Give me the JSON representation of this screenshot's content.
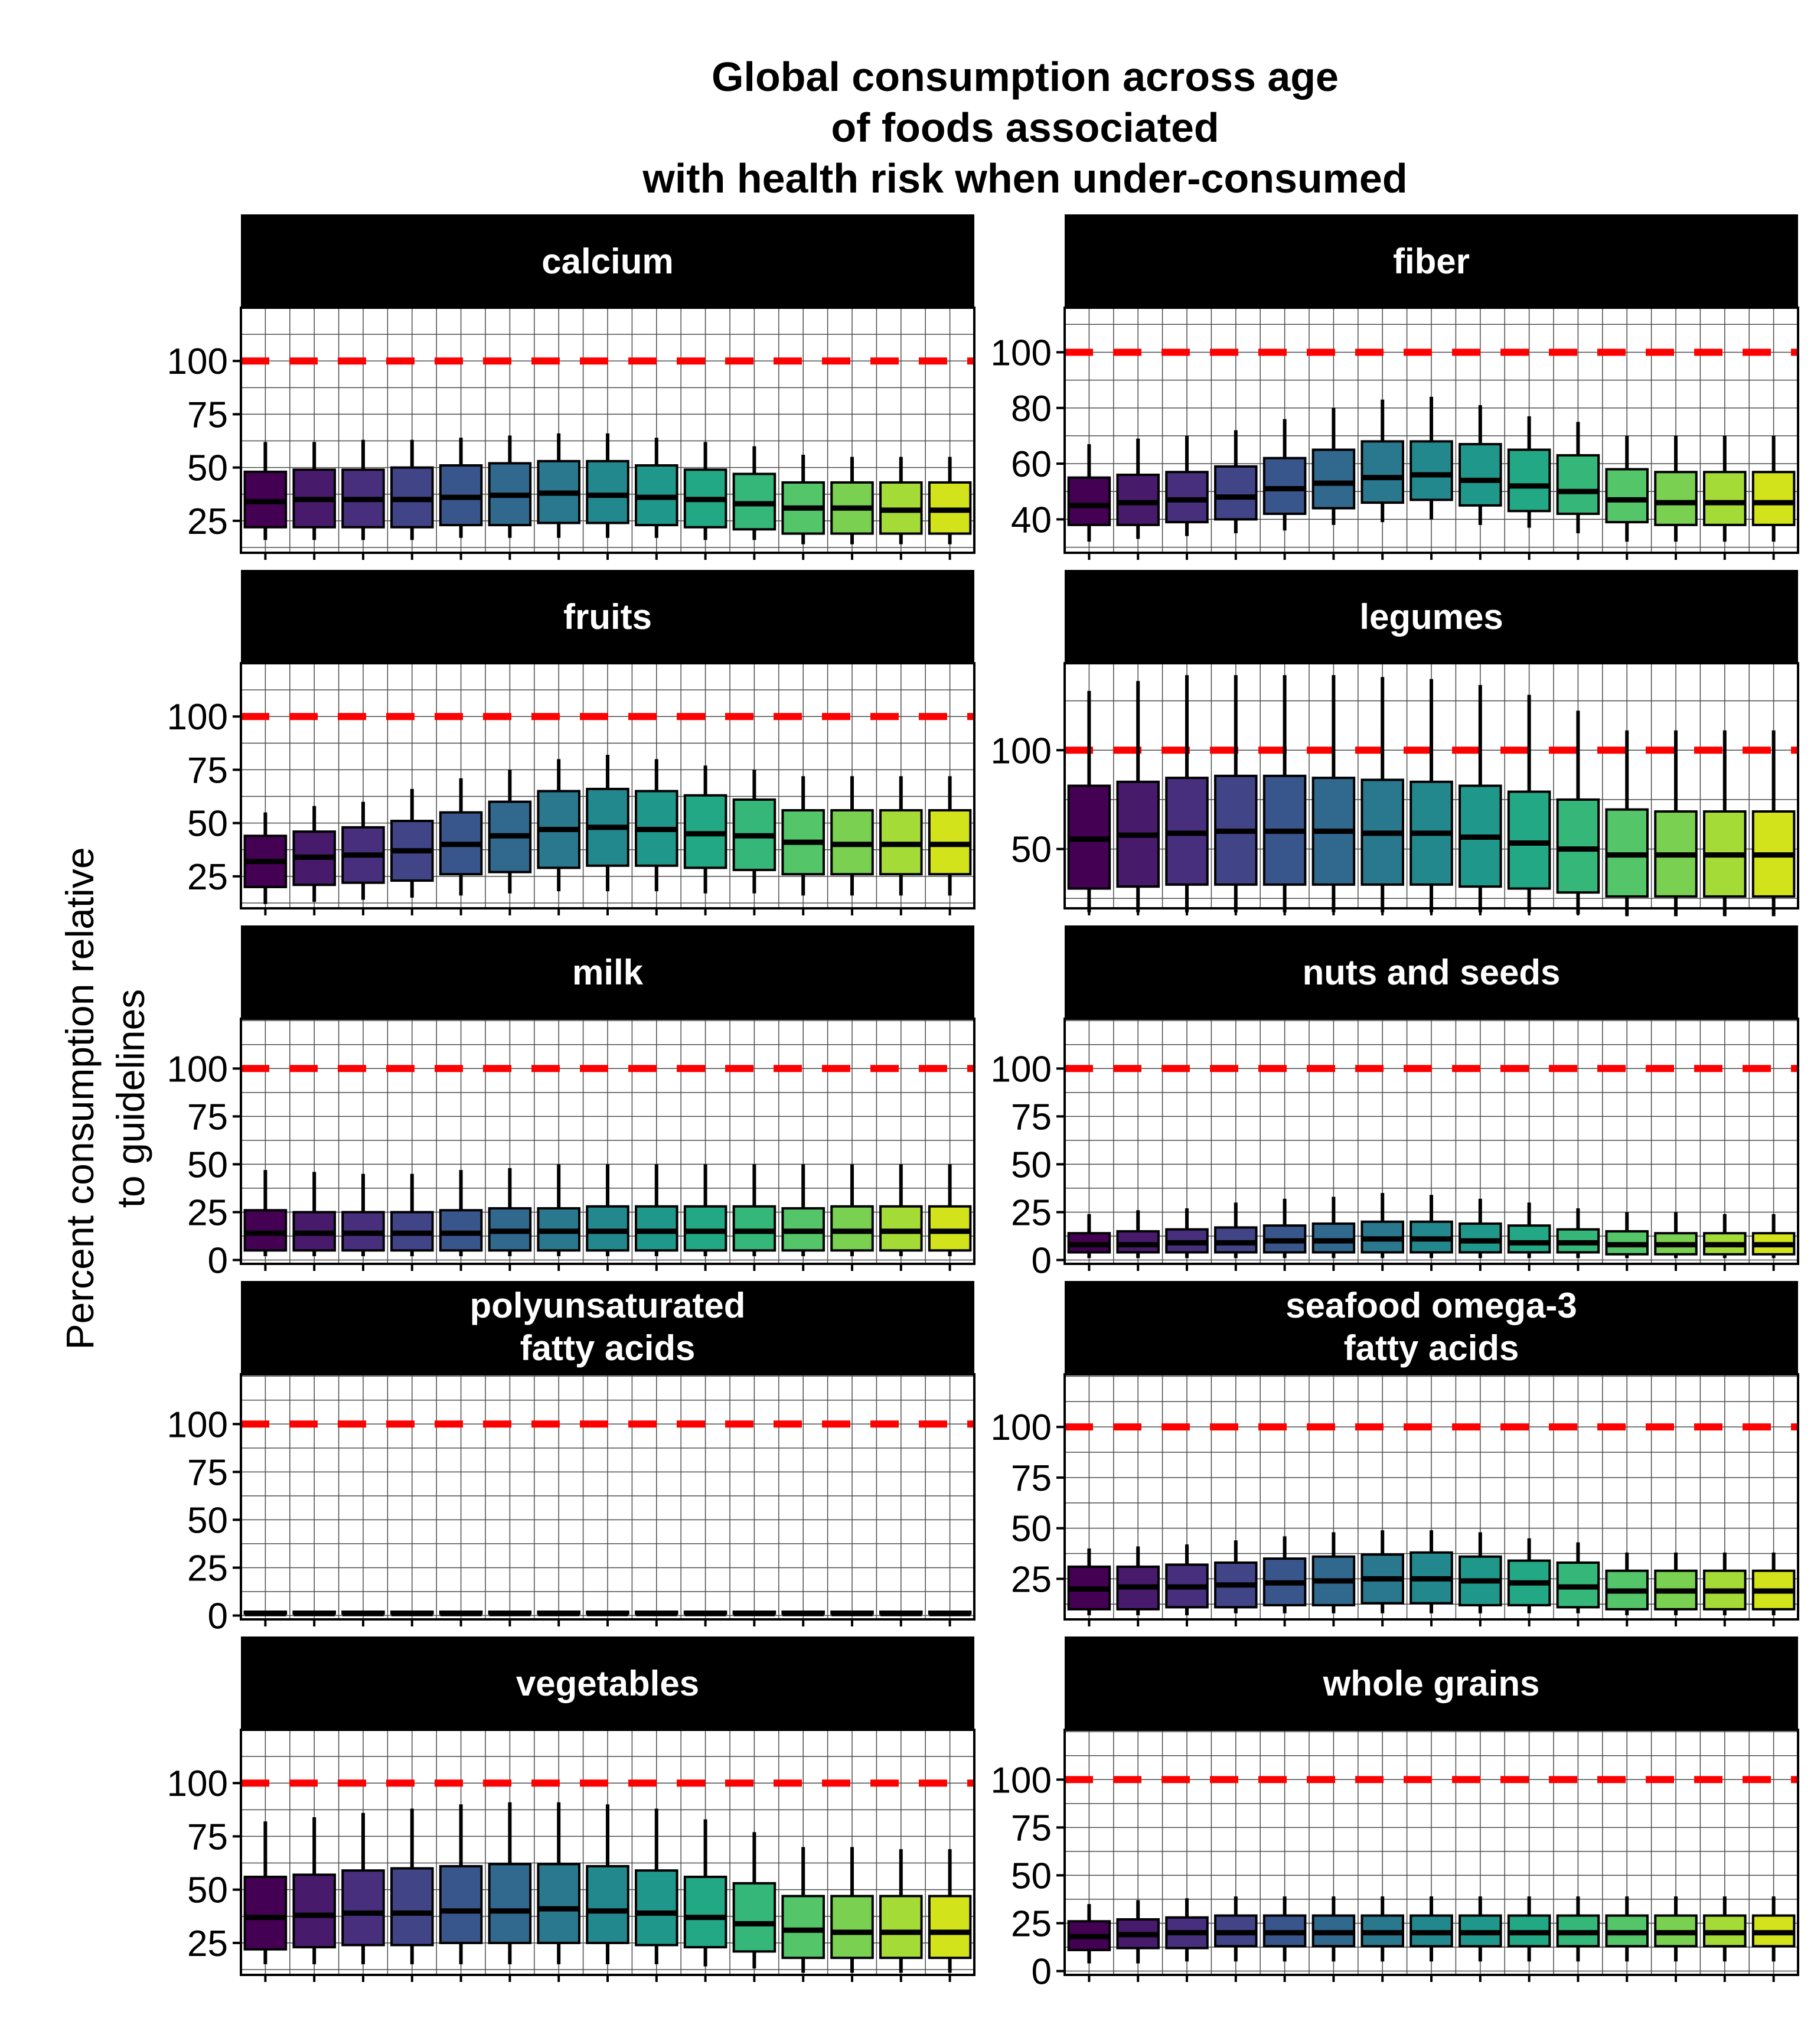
{
  "title": [
    "Global consumption across age",
    "of foods associated",
    "with health risk when under-consumed"
  ],
  "ylabel": [
    "Percent consumption relative",
    "to guidelines"
  ],
  "colors": {
    "reference_line": "#ff0000",
    "strip_background": "#000000",
    "strip_text": "#ffffff",
    "box_stroke": "#000000",
    "grid": "#4d4d4d",
    "age_palette": [
      "#440154",
      "#481a6c",
      "#472f7d",
      "#414487",
      "#39568c",
      "#31688e",
      "#2a788e",
      "#23888e",
      "#1f988b",
      "#22a884",
      "#35b779",
      "#54c568",
      "#7ad151",
      "#a5db36",
      "#d2e21b",
      "#fde725"
    ]
  },
  "chart_data": [
    {
      "type": "box",
      "title": "calcium",
      "ylim": [
        10,
        125
      ],
      "yticks": [
        25,
        50,
        75,
        100
      ],
      "reference": 100,
      "boxes": [
        [
          16,
          22,
          34,
          48,
          62
        ],
        [
          16,
          22,
          35,
          49,
          62
        ],
        [
          16,
          22,
          35,
          49,
          63
        ],
        [
          16,
          22,
          35,
          50,
          63
        ],
        [
          17,
          23,
          36,
          51,
          64
        ],
        [
          17,
          23,
          37,
          52,
          65
        ],
        [
          17,
          24,
          38,
          53,
          66
        ],
        [
          17,
          24,
          37,
          53,
          66
        ],
        [
          17,
          23,
          36,
          51,
          64
        ],
        [
          16,
          22,
          35,
          49,
          62
        ],
        [
          16,
          21,
          33,
          47,
          60
        ],
        [
          14,
          19,
          31,
          43,
          56
        ],
        [
          14,
          19,
          31,
          43,
          55
        ],
        [
          14,
          19,
          30,
          43,
          55
        ],
        [
          14,
          19,
          30,
          43,
          55
        ]
      ]
    },
    {
      "type": "box",
      "title": "fiber",
      "ylim": [
        28,
        116
      ],
      "yticks": [
        40,
        60,
        80,
        100
      ],
      "reference": 100,
      "boxes": [
        [
          32,
          38,
          45,
          55,
          67
        ],
        [
          33,
          38,
          46,
          56,
          69
        ],
        [
          34,
          39,
          47,
          57,
          70
        ],
        [
          35,
          40,
          48,
          59,
          72
        ],
        [
          36,
          42,
          51,
          62,
          76
        ],
        [
          38,
          44,
          53,
          65,
          80
        ],
        [
          39,
          46,
          55,
          68,
          83
        ],
        [
          40,
          47,
          56,
          68,
          84
        ],
        [
          38,
          45,
          54,
          67,
          81
        ],
        [
          37,
          43,
          52,
          65,
          77
        ],
        [
          35,
          42,
          50,
          63,
          75
        ],
        [
          32,
          39,
          47,
          58,
          70
        ],
        [
          32,
          38,
          46,
          57,
          70
        ],
        [
          32,
          38,
          46,
          57,
          70
        ],
        [
          32,
          38,
          46,
          57,
          70
        ]
      ]
    },
    {
      "type": "box",
      "title": "fruits",
      "ylim": [
        10,
        125
      ],
      "yticks": [
        25,
        50,
        75,
        100
      ],
      "reference": 100,
      "boxes": [
        [
          12,
          20,
          32,
          44,
          55
        ],
        [
          13,
          21,
          34,
          46,
          58
        ],
        [
          14,
          22,
          35,
          48,
          60
        ],
        [
          15,
          23,
          37,
          51,
          66
        ],
        [
          16,
          26,
          40,
          55,
          71
        ],
        [
          17,
          27,
          44,
          60,
          75
        ],
        [
          18,
          29,
          47,
          65,
          80
        ],
        [
          18,
          30,
          48,
          66,
          82
        ],
        [
          18,
          30,
          47,
          65,
          80
        ],
        [
          17,
          29,
          45,
          63,
          77
        ],
        [
          17,
          28,
          44,
          61,
          75
        ],
        [
          16,
          26,
          41,
          56,
          72
        ],
        [
          16,
          26,
          40,
          56,
          72
        ],
        [
          16,
          26,
          40,
          56,
          72
        ],
        [
          16,
          26,
          40,
          56,
          72
        ]
      ]
    },
    {
      "type": "box",
      "title": "legumes",
      "ylim": [
        20,
        144
      ],
      "yticks": [
        50,
        100
      ],
      "reference": 100,
      "boxes": [
        [
          18,
          30,
          55,
          82,
          130
        ],
        [
          18,
          31,
          57,
          84,
          135
        ],
        [
          18,
          32,
          58,
          86,
          138
        ],
        [
          18,
          32,
          59,
          87,
          138
        ],
        [
          18,
          32,
          59,
          87,
          138
        ],
        [
          18,
          32,
          59,
          86,
          138
        ],
        [
          18,
          32,
          58,
          85,
          137
        ],
        [
          18,
          32,
          58,
          84,
          136
        ],
        [
          18,
          31,
          56,
          82,
          133
        ],
        [
          18,
          30,
          53,
          79,
          128
        ],
        [
          17,
          28,
          50,
          75,
          120
        ],
        [
          16,
          26,
          47,
          70,
          110
        ],
        [
          16,
          26,
          47,
          69,
          110
        ],
        [
          16,
          26,
          47,
          69,
          110
        ],
        [
          16,
          26,
          47,
          69,
          110
        ]
      ]
    },
    {
      "type": "box",
      "title": "milk",
      "ylim": [
        -2,
        126
      ],
      "yticks": [
        0,
        25,
        50,
        75,
        100
      ],
      "reference": 100,
      "boxes": [
        [
          2,
          5,
          14,
          26,
          47
        ],
        [
          2,
          5,
          14,
          25,
          46
        ],
        [
          2,
          5,
          14,
          25,
          45
        ],
        [
          2,
          5,
          14,
          25,
          45
        ],
        [
          2,
          5,
          14,
          26,
          47
        ],
        [
          2,
          5,
          15,
          27,
          48
        ],
        [
          2,
          5,
          15,
          27,
          50
        ],
        [
          2,
          5,
          15,
          28,
          50
        ],
        [
          2,
          5,
          15,
          28,
          50
        ],
        [
          2,
          5,
          15,
          28,
          50
        ],
        [
          2,
          5,
          15,
          28,
          50
        ],
        [
          2,
          5,
          15,
          27,
          50
        ],
        [
          2,
          5,
          15,
          28,
          50
        ],
        [
          2,
          5,
          15,
          28,
          50
        ],
        [
          2,
          5,
          15,
          28,
          50
        ]
      ]
    },
    {
      "type": "box",
      "title": "nuts and seeds",
      "ylim": [
        -2,
        126
      ],
      "yticks": [
        0,
        25,
        50,
        75,
        100
      ],
      "reference": 100,
      "boxes": [
        [
          1,
          4,
          8,
          14,
          24
        ],
        [
          1,
          4,
          8,
          15,
          26
        ],
        [
          1,
          4,
          9,
          16,
          27
        ],
        [
          1,
          4,
          9,
          17,
          30
        ],
        [
          1,
          4,
          10,
          18,
          32
        ],
        [
          1,
          4,
          10,
          19,
          33
        ],
        [
          1,
          4,
          11,
          20,
          35
        ],
        [
          1,
          4,
          11,
          20,
          34
        ],
        [
          1,
          4,
          10,
          19,
          32
        ],
        [
          1,
          4,
          9,
          18,
          30
        ],
        [
          1,
          4,
          9,
          16,
          27
        ],
        [
          1,
          3,
          8,
          15,
          25
        ],
        [
          1,
          3,
          8,
          14,
          25
        ],
        [
          1,
          3,
          8,
          14,
          24
        ],
        [
          1,
          3,
          8,
          14,
          24
        ]
      ]
    },
    {
      "type": "box",
      "title": "polyunsaturated fatty acids",
      "ylim": [
        -2,
        126
      ],
      "yticks": [
        0,
        25,
        50,
        75,
        100
      ],
      "reference": 100,
      "boxes": [
        [
          1,
          1,
          1,
          2,
          2
        ],
        [
          1,
          1,
          1,
          2,
          2
        ],
        [
          1,
          1,
          1,
          2,
          2
        ],
        [
          1,
          1,
          1,
          2,
          2
        ],
        [
          1,
          1,
          1,
          2,
          2
        ],
        [
          1,
          1,
          1,
          2,
          2
        ],
        [
          1,
          1,
          1,
          2,
          2
        ],
        [
          1,
          1,
          1,
          2,
          2
        ],
        [
          1,
          1,
          1,
          2,
          2
        ],
        [
          1,
          1,
          1,
          2,
          2
        ],
        [
          1,
          1,
          1,
          2,
          2
        ],
        [
          1,
          1,
          1,
          2,
          2
        ],
        [
          1,
          1,
          1,
          2,
          2
        ],
        [
          1,
          1,
          1,
          2,
          2
        ],
        [
          1,
          1,
          1,
          2,
          2
        ]
      ]
    },
    {
      "type": "box",
      "title": "seafood omega-3 fatty acids",
      "ylim": [
        5,
        126
      ],
      "yticks": [
        25,
        50,
        75,
        100
      ],
      "reference": 100,
      "boxes": [
        [
          7,
          10,
          20,
          31,
          40
        ],
        [
          7,
          10,
          21,
          31,
          41
        ],
        [
          7,
          11,
          21,
          32,
          42
        ],
        [
          8,
          11,
          22,
          33,
          44
        ],
        [
          8,
          12,
          23,
          35,
          46
        ],
        [
          8,
          12,
          24,
          36,
          48
        ],
        [
          8,
          13,
          25,
          37,
          49
        ],
        [
          8,
          13,
          25,
          38,
          49
        ],
        [
          8,
          12,
          24,
          36,
          48
        ],
        [
          8,
          12,
          23,
          34,
          45
        ],
        [
          8,
          11,
          21,
          33,
          43
        ],
        [
          7,
          10,
          19,
          29,
          38
        ],
        [
          7,
          10,
          19,
          29,
          38
        ],
        [
          7,
          10,
          19,
          29,
          38
        ],
        [
          7,
          10,
          19,
          29,
          38
        ]
      ]
    },
    {
      "type": "box",
      "title": "vegetables",
      "ylim": [
        10,
        125
      ],
      "yticks": [
        25,
        50,
        75,
        100
      ],
      "reference": 100,
      "boxes": [
        [
          15,
          22,
          37,
          56,
          82
        ],
        [
          15,
          23,
          38,
          57,
          84
        ],
        [
          15,
          24,
          39,
          59,
          86
        ],
        [
          15,
          24,
          39,
          60,
          88
        ],
        [
          15,
          25,
          40,
          61,
          90
        ],
        [
          15,
          25,
          40,
          62,
          91
        ],
        [
          15,
          25,
          41,
          62,
          91
        ],
        [
          15,
          25,
          40,
          61,
          90
        ],
        [
          15,
          24,
          39,
          59,
          88
        ],
        [
          14,
          23,
          37,
          56,
          83
        ],
        [
          13,
          21,
          34,
          53,
          77
        ],
        [
          11,
          18,
          31,
          47,
          70
        ],
        [
          11,
          18,
          30,
          47,
          70
        ],
        [
          11,
          18,
          30,
          47,
          69
        ],
        [
          11,
          18,
          30,
          47,
          69
        ]
      ]
    },
    {
      "type": "box",
      "title": "whole grains",
      "ylim": [
        -2,
        126
      ],
      "yticks": [
        0,
        25,
        50,
        75,
        100
      ],
      "reference": 100,
      "boxes": [
        [
          4,
          11,
          18,
          26,
          35
        ],
        [
          4,
          12,
          19,
          27,
          37
        ],
        [
          5,
          12,
          20,
          28,
          38
        ],
        [
          5,
          13,
          20,
          29,
          39
        ],
        [
          5,
          13,
          20,
          29,
          39
        ],
        [
          5,
          13,
          20,
          29,
          39
        ],
        [
          5,
          13,
          20,
          29,
          39
        ],
        [
          5,
          13,
          20,
          29,
          39
        ],
        [
          5,
          13,
          20,
          29,
          39
        ],
        [
          5,
          13,
          20,
          29,
          39
        ],
        [
          5,
          13,
          20,
          29,
          39
        ],
        [
          5,
          13,
          20,
          29,
          39
        ],
        [
          5,
          13,
          20,
          29,
          39
        ],
        [
          5,
          13,
          20,
          29,
          39
        ],
        [
          5,
          13,
          20,
          29,
          39
        ]
      ]
    }
  ]
}
